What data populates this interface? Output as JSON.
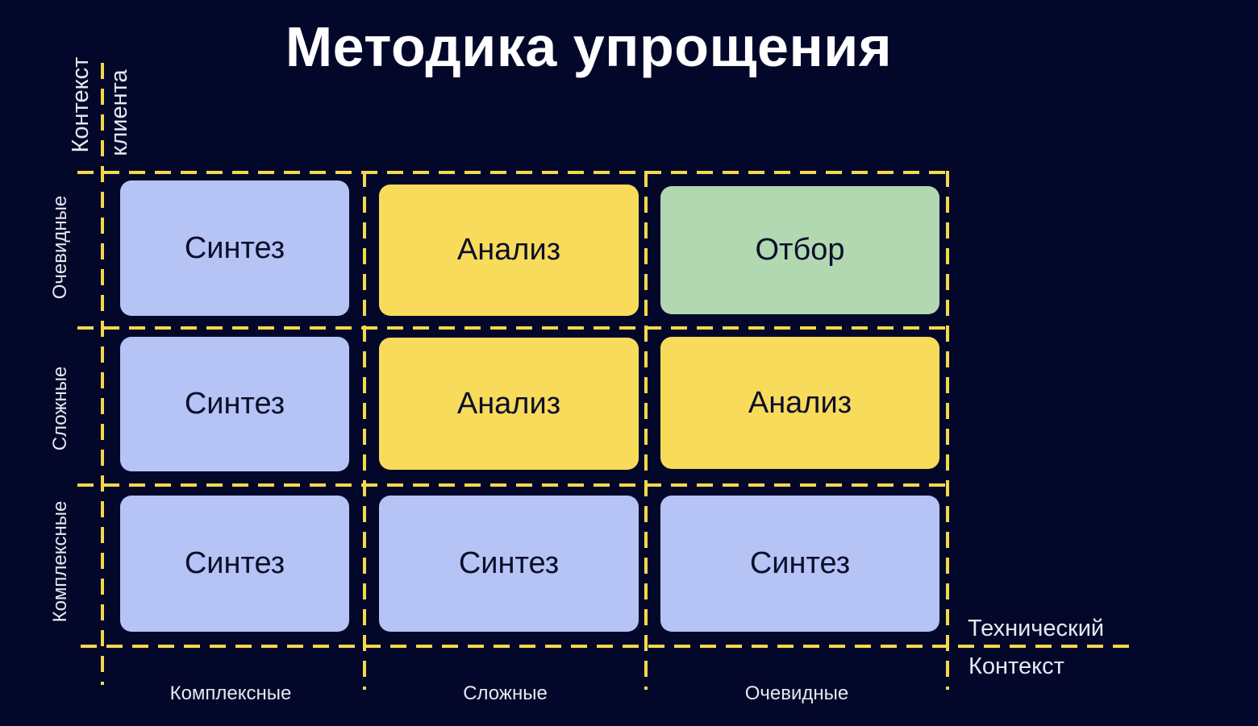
{
  "title": "Методика упрощения",
  "y_axis": {
    "title_line1": "Контекст",
    "title_line2": "клиента",
    "rows": [
      "Очевидные",
      "Сложные",
      "Комплексные"
    ]
  },
  "x_axis": {
    "title_line1": "Технический",
    "title_line2": "Контекст",
    "columns": [
      "Комплексные",
      "Сложные",
      "Очевидные"
    ]
  },
  "cells": [
    [
      {
        "label": "Синтез",
        "color": "#b6c3f5"
      },
      {
        "label": "Анализ",
        "color": "#f8db5a"
      },
      {
        "label": "Отбор",
        "color": "#b1d8b0"
      }
    ],
    [
      {
        "label": "Синтез",
        "color": "#b6c3f5"
      },
      {
        "label": "Анализ",
        "color": "#f8db5a"
      },
      {
        "label": "Анализ",
        "color": "#f8db5a"
      }
    ],
    [
      {
        "label": "Синтез",
        "color": "#b6c3f5"
      },
      {
        "label": "Синтез",
        "color": "#b6c3f5"
      },
      {
        "label": "Синтез",
        "color": "#b6c3f5"
      }
    ]
  ],
  "colors": {
    "background": "#03082b",
    "grid_line": "#f5d84a",
    "text": "#ffffff"
  }
}
